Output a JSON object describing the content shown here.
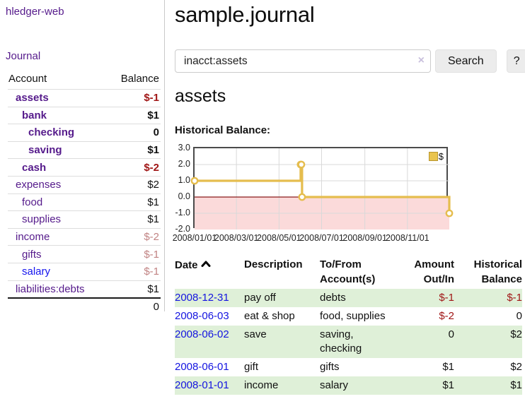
{
  "app": {
    "brand": "hledger-web",
    "nav_journal": "Journal"
  },
  "sidebar": {
    "headers": {
      "account": "Account",
      "balance": "Balance"
    },
    "accounts": [
      {
        "name": "assets",
        "depth": 1,
        "bold": true,
        "balance": "$-1",
        "balance_style": "neg-strong",
        "link_style": "purple"
      },
      {
        "name": "bank",
        "depth": 2,
        "bold": true,
        "balance": "$1",
        "balance_style": "pos",
        "link_style": "purple"
      },
      {
        "name": "checking",
        "depth": 3,
        "bold": true,
        "balance": "0",
        "balance_style": "pos",
        "link_style": "purple"
      },
      {
        "name": "saving",
        "depth": 3,
        "bold": true,
        "balance": "$1",
        "balance_style": "pos",
        "link_style": "purple"
      },
      {
        "name": "cash",
        "depth": 2,
        "bold": true,
        "balance": "$-2",
        "balance_style": "neg-strong",
        "link_style": "purple"
      },
      {
        "name": "expenses",
        "depth": 1,
        "bold": false,
        "balance": "$2",
        "balance_style": "pos",
        "link_style": "purple"
      },
      {
        "name": "food",
        "depth": 2,
        "bold": false,
        "balance": "$1",
        "balance_style": "pos",
        "link_style": "purple"
      },
      {
        "name": "supplies",
        "depth": 2,
        "bold": false,
        "balance": "$1",
        "balance_style": "pos",
        "link_style": "purple"
      },
      {
        "name": "income",
        "depth": 1,
        "bold": false,
        "balance": "$-2",
        "balance_style": "neg-soft",
        "link_style": "purple"
      },
      {
        "name": "gifts",
        "depth": 2,
        "bold": false,
        "balance": "$-1",
        "balance_style": "neg-soft",
        "link_style": "purple"
      },
      {
        "name": "salary",
        "depth": 2,
        "bold": false,
        "balance": "$-1",
        "balance_style": "neg-soft",
        "link_style": "blue"
      },
      {
        "name": "liabilities:debts",
        "depth": 1,
        "bold": false,
        "balance": "$1",
        "balance_style": "pos",
        "link_style": "purple"
      }
    ],
    "total": "0"
  },
  "header": {
    "title": "sample.journal"
  },
  "search": {
    "value": "inacct:assets",
    "clear_icon": "×",
    "search_button": "Search",
    "help_button": "?"
  },
  "account_page": {
    "title": "assets",
    "chart_label": "Historical Balance:"
  },
  "chart_data": {
    "type": "line",
    "title": "Historical Balance:",
    "series": [
      {
        "name": "$",
        "style": "step-after",
        "markers": "open-circle",
        "points": [
          [
            "2008-01-01",
            1
          ],
          [
            "2008-06-01",
            2
          ],
          [
            "2008-06-02",
            2
          ],
          [
            "2008-06-03",
            0
          ],
          [
            "2008-12-31",
            -1
          ]
        ]
      }
    ],
    "x_domain": [
      "2008-01-01",
      "2008-12-31"
    ],
    "x_tick_labels": [
      "2008/01/01",
      "2008/03/01",
      "2008/05/01",
      "2008/07/01",
      "2008/09/01",
      "2008/11/01"
    ],
    "y_ticks": [
      3.0,
      2.0,
      1.0,
      0.0,
      -1.0,
      -2.0
    ],
    "ylim": [
      -2,
      3
    ],
    "grid": true,
    "legend_position": "top-right",
    "colors": {
      "line": "#e5bd4e",
      "marker_fill": "#ffffff",
      "negative_region": "#fbdada",
      "zero_line": "#8b1a1a",
      "gridline": "#d9d9d9",
      "border": "#4b4b4b"
    }
  },
  "register_table": {
    "headers": {
      "date": "Date",
      "description": "Description",
      "accounts": "To/From\nAccount(s)",
      "amount": "Amount\nOut/In",
      "balance": "Historical\nBalance"
    },
    "sort_icon": "chevron-up",
    "rows": [
      {
        "date": "2008-12-31",
        "description": "pay off",
        "accounts": "debts",
        "amount": "$-1",
        "amount_neg": true,
        "balance": "$-1",
        "balance_neg": true,
        "shaded": true
      },
      {
        "date": "2008-06-03",
        "description": "eat & shop",
        "accounts": "food, supplies",
        "amount": "$-2",
        "amount_neg": true,
        "balance": "0",
        "balance_neg": false,
        "shaded": false
      },
      {
        "date": "2008-06-02",
        "description": "save",
        "accounts": "saving,\nchecking",
        "amount": "0",
        "amount_neg": false,
        "balance": "$2",
        "balance_neg": false,
        "shaded": true
      },
      {
        "date": "2008-06-01",
        "description": "gift",
        "accounts": "gifts",
        "amount": "$1",
        "amount_neg": false,
        "balance": "$2",
        "balance_neg": false,
        "shaded": false
      },
      {
        "date": "2008-01-01",
        "description": "income",
        "accounts": "salary",
        "amount": "$1",
        "amount_neg": false,
        "balance": "$1",
        "balance_neg": false,
        "shaded": true
      }
    ]
  },
  "colors": {
    "link_purple": "#551a8b",
    "link_blue": "#1414ee",
    "negative_strong": "#a01616",
    "negative_soft": "#c18383",
    "row_stripe_green": "#dff0d8",
    "chart_gold": "#e5bd4e"
  }
}
